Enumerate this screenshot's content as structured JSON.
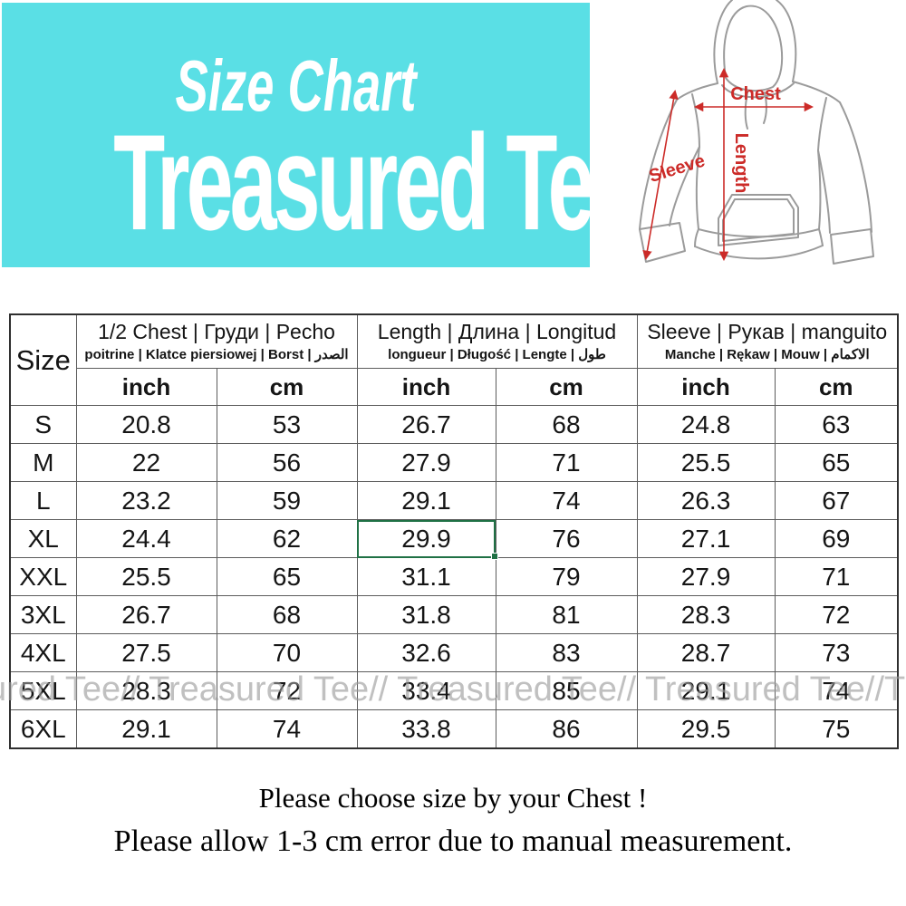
{
  "banner": {
    "title": "Size Chart",
    "brand": "Treasured Tee"
  },
  "diagram": {
    "chest_label": "Chest",
    "length_label": "Length",
    "sleeve_label": "Sleeve"
  },
  "table": {
    "corner_header": "Size",
    "groups": [
      {
        "title": "1/2 Chest | Груди | Pecho",
        "subtitle": "poitrine | Klatce piersiowej | Borst | الصدر"
      },
      {
        "title": "Length | Длина | Longitud",
        "subtitle": "longueur | Długość | Lengte | طول"
      },
      {
        "title": "Sleeve | Рукав | manguito",
        "subtitle": "Manche | Rękaw | Mouw | الاكمام"
      }
    ],
    "unit_headers": [
      "inch",
      "cm",
      "inch",
      "cm",
      "inch",
      "cm"
    ],
    "rows": [
      {
        "size": "S",
        "values": [
          "20.8",
          "53",
          "26.7",
          "68",
          "24.8",
          "63"
        ]
      },
      {
        "size": "M",
        "values": [
          "22",
          "56",
          "27.9",
          "71",
          "25.5",
          "65"
        ]
      },
      {
        "size": "L",
        "values": [
          "23.2",
          "59",
          "29.1",
          "74",
          "26.3",
          "67"
        ]
      },
      {
        "size": "XL",
        "values": [
          "24.4",
          "62",
          "29.9",
          "76",
          "27.1",
          "69"
        ]
      },
      {
        "size": "XXL",
        "values": [
          "25.5",
          "65",
          "31.1",
          "79",
          "27.9",
          "71"
        ]
      },
      {
        "size": "3XL",
        "values": [
          "26.7",
          "68",
          "31.8",
          "81",
          "28.3",
          "72"
        ]
      },
      {
        "size": "4XL",
        "values": [
          "27.5",
          "70",
          "32.6",
          "83",
          "28.7",
          "73"
        ]
      },
      {
        "size": "5XL",
        "values": [
          "28.3",
          "72",
          "33.4",
          "85",
          "29.1",
          "74"
        ]
      },
      {
        "size": "6XL",
        "values": [
          "29.1",
          "74",
          "33.8",
          "86",
          "29.5",
          "75"
        ]
      }
    ],
    "highlight": {
      "size": "XL",
      "value_index": 2
    }
  },
  "watermark": {
    "text": "ured Tee// Treasured Tee// Treasured Tee// Treasured Tee//Treasured Tee// Treasured"
  },
  "footer": {
    "line1": "Please choose size by your Chest !",
    "line2": "Please allow 1-3 cm error due to manual measurement."
  },
  "colors": {
    "banner_bg": "#5adfe5",
    "accent_red": "#cc2b28",
    "highlight_green": "#1f7145",
    "watermark_gray": "#9a9a9a"
  }
}
